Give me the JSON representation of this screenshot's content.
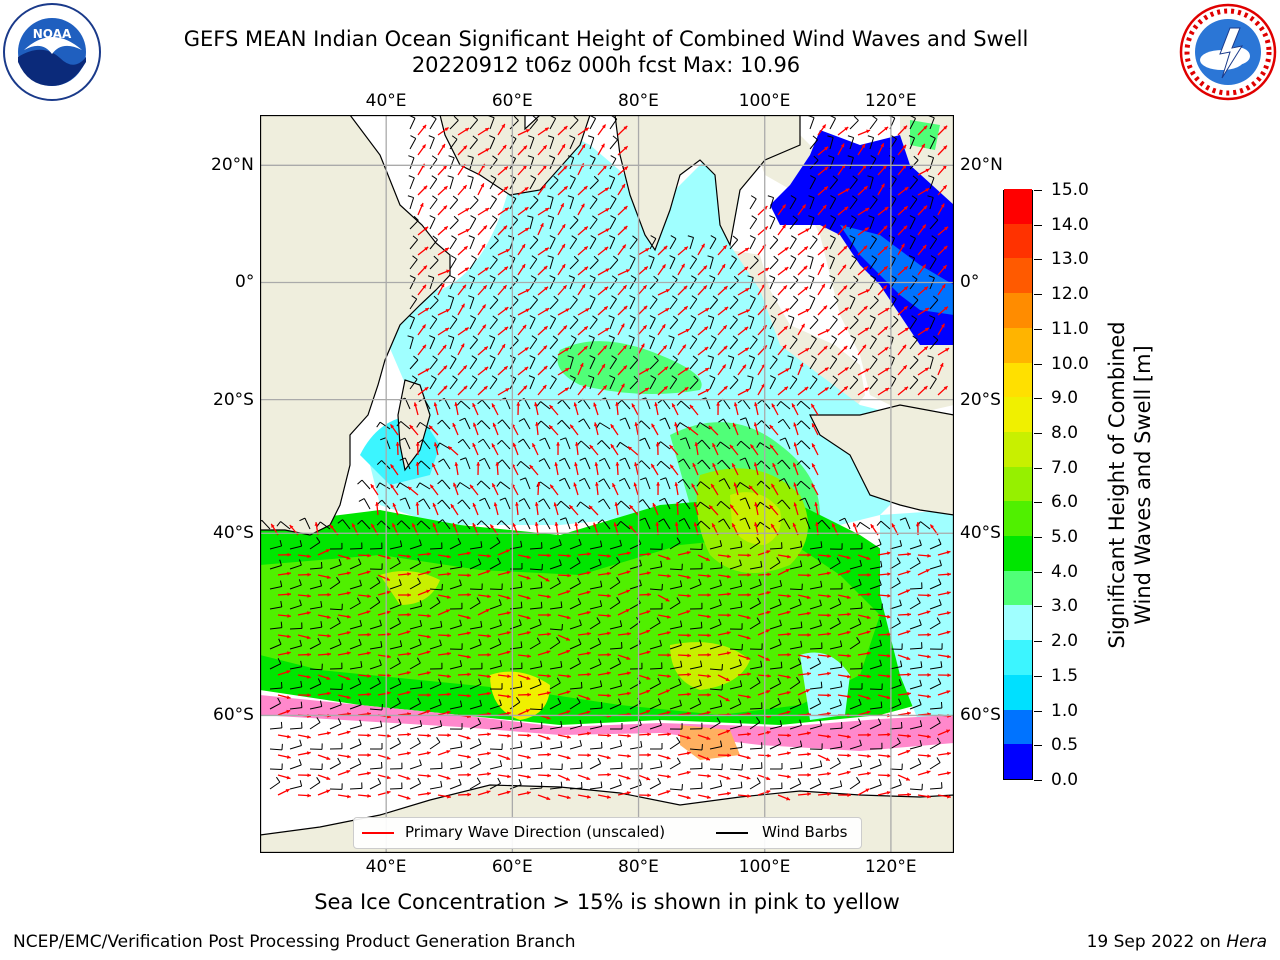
{
  "title_line1": "GEFS MEAN Indian Ocean Significant Height of Combined Wind Waves and Swell",
  "title_line2": "20220912 t06z 000h fcst   Max: 10.96",
  "logos": {
    "left": {
      "text": "NOAA",
      "ring_text": "NATIONAL OCEANIC AND ATMOSPHERIC ADMINISTRATION • U.S. DEPARTMENT OF COMMERCE"
    },
    "right": {
      "ring_text": "NATIONAL WEATHER SERVICE"
    }
  },
  "map": {
    "lon_range": [
      20,
      130
    ],
    "lat_range": [
      -70,
      28
    ],
    "lon_ticks": [
      "40°E",
      "60°E",
      "80°E",
      "100°E",
      "120°E"
    ],
    "lat_ticks": [
      "20°N",
      "0°",
      "20°S",
      "40°S",
      "60°S"
    ],
    "grid": true,
    "land_color": "#efeedd",
    "ocean_shading_note": "wave height field"
  },
  "colorbar": {
    "title_line1": "Significant Height of Combined",
    "title_line2": "Wind Waves and Swell [m]",
    "levels": [
      "0.0",
      "0.5",
      "1.0",
      "1.5",
      "2.0",
      "3.0",
      "4.0",
      "5.0",
      "6.0",
      "7.0",
      "8.0",
      "9.0",
      "10.0",
      "11.0",
      "12.0",
      "13.0",
      "14.0",
      "15.0"
    ],
    "colors": [
      "#0000ff",
      "#0073ff",
      "#00e0ff",
      "#3cf5ff",
      "#a0ffff",
      "#50ff78",
      "#00e600",
      "#50f000",
      "#96f000",
      "#c8f000",
      "#f0f000",
      "#ffe000",
      "#ffb400",
      "#ff8c00",
      "#ff5a00",
      "#ff3200",
      "#ff0000"
    ]
  },
  "legend": {
    "primary_wave": "Primary Wave Direction (unscaled)",
    "wind_barbs": "Wind Barbs",
    "wave_color": "#ff0000",
    "barb_color": "#000000"
  },
  "ice_note": "Sea Ice Concentration > 15% is shown in pink to yellow",
  "footer_left": "NCEP/EMC/Verification Post Processing Product Generation Branch",
  "footer_right_prefix": "19 Sep 2022 on ",
  "footer_right_host": "Hera"
}
